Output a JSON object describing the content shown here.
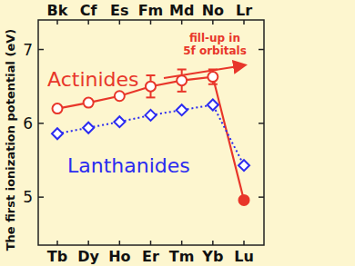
{
  "chart_data": {
    "type": "line",
    "y_label": "The first ionization potential (eV)",
    "categories": [
      "Tb",
      "Dy",
      "Ho",
      "Er",
      "Tm",
      "Yb",
      "Lu"
    ],
    "categories_top": [
      "Bk",
      "Cf",
      "Es",
      "Fm",
      "Md",
      "No",
      "Lr"
    ],
    "annotation": [
      "fill-up in",
      "5f orbitals"
    ],
    "ylim": [
      4.35,
      7.4
    ],
    "yticks": [
      5,
      6,
      7
    ],
    "grid": false,
    "series": [
      {
        "name": "Actinides",
        "color": "#e8362a",
        "marker": "circle",
        "line_style": "solid",
        "values": [
          6.2,
          6.28,
          6.37,
          6.5,
          6.58,
          6.63,
          4.96
        ],
        "errors": [
          null,
          null,
          null,
          0.15,
          0.15,
          0.1,
          null
        ]
      },
      {
        "name": "Lanthanides",
        "color": "#2b2bf0",
        "marker": "diamond",
        "line_style": "dotted",
        "values": [
          5.86,
          5.94,
          6.02,
          6.11,
          6.18,
          6.25,
          5.43
        ]
      }
    ]
  }
}
